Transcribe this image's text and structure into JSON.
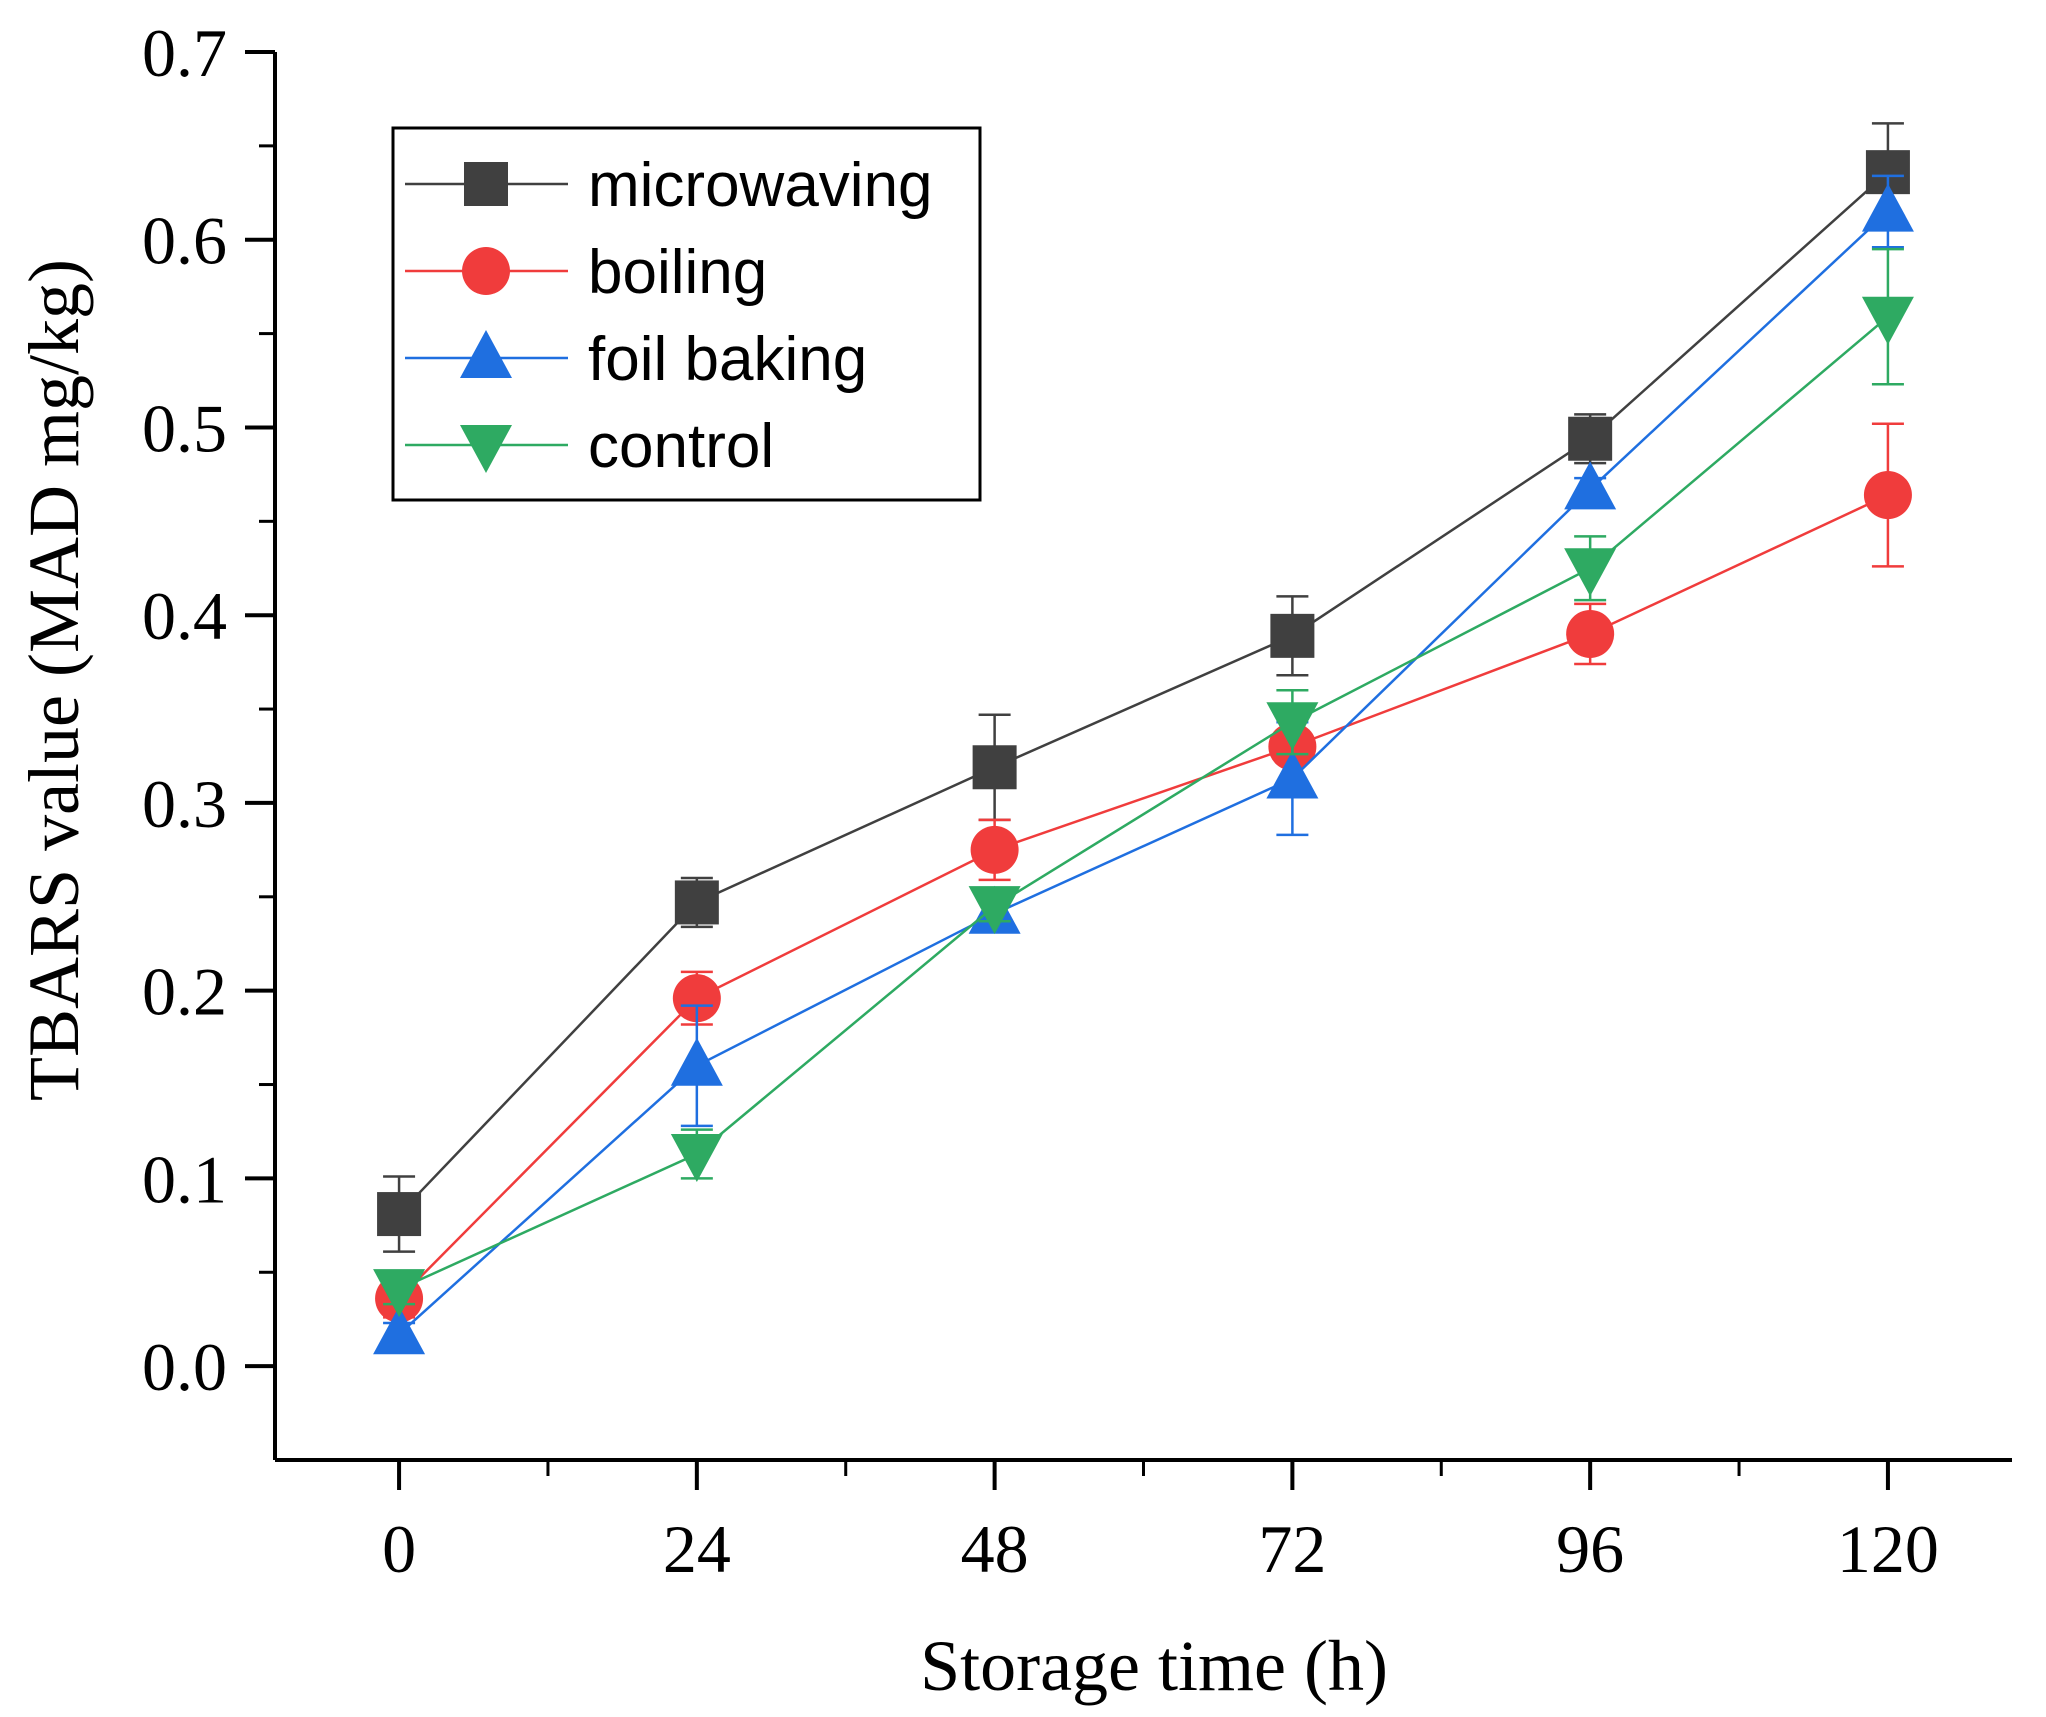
{
  "chart_data": {
    "type": "line",
    "xlabel": "Storage time (h)",
    "ylabel": "TBARS value (MAD mg/kg)",
    "x": [
      0,
      24,
      48,
      72,
      96,
      120
    ],
    "xticks": [
      "0",
      "24",
      "48",
      "72",
      "96",
      "120"
    ],
    "yticks": [
      "0.0",
      "0.1",
      "0.2",
      "0.3",
      "0.4",
      "0.5",
      "0.6",
      "0.7"
    ],
    "ylim": [
      -0.05,
      0.7
    ],
    "xlim": [
      -10,
      130
    ],
    "grid": false,
    "legend_position": "top-left",
    "series": [
      {
        "name": "microwaving",
        "color": "#404040",
        "marker": "square",
        "values": [
          0.081,
          0.247,
          0.319,
          0.389,
          0.494,
          0.636
        ],
        "errors": [
          0.02,
          0.013,
          0.028,
          0.021,
          0.013,
          0.026
        ]
      },
      {
        "name": "boiling",
        "color": "#f03c3c",
        "marker": "circle",
        "values": [
          0.036,
          0.196,
          0.275,
          0.33,
          0.39,
          0.464
        ],
        "errors": [
          0.01,
          0.014,
          0.016,
          0.022,
          0.016,
          0.038
        ]
      },
      {
        "name": "foil baking",
        "color": "#1f6fe0",
        "marker": "triangle-up",
        "values": [
          0.017,
          0.16,
          0.241,
          0.313,
          0.467,
          0.615
        ],
        "errors": [
          0.006,
          0.032,
          0.006,
          0.03,
          0.006,
          0.019
        ]
      },
      {
        "name": "control",
        "color": "#2eaa62",
        "marker": "triangle-down",
        "values": [
          0.041,
          0.113,
          0.245,
          0.343,
          0.425,
          0.559
        ],
        "errors": [
          0.008,
          0.013,
          0.008,
          0.017,
          0.017,
          0.036
        ]
      }
    ]
  }
}
